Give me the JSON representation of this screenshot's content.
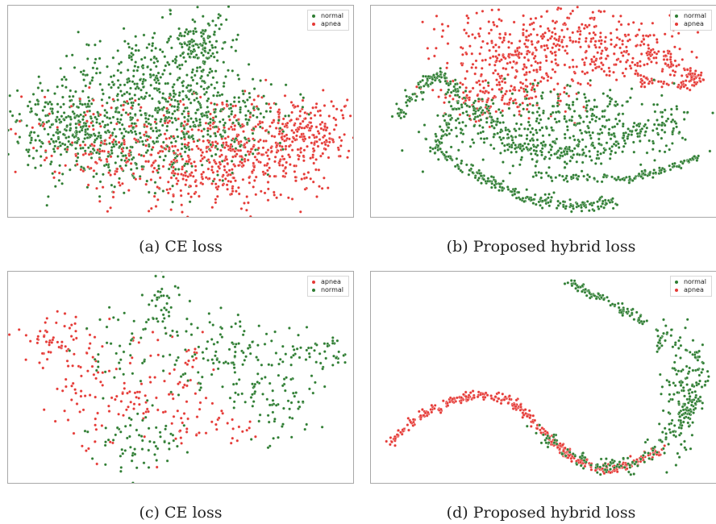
{
  "colors": {
    "normal": "#2e7d32",
    "apnea": "#e53935"
  },
  "chart_data": [
    {
      "type": "scatter",
      "caption": "(a) CE loss",
      "legend": [
        "normal",
        "apnea"
      ],
      "legend_placement": "top-right",
      "series": [
        {
          "name": "normal",
          "color": "#2e7d32"
        },
        {
          "name": "apnea",
          "color": "#e53935"
        }
      ],
      "grid": false
    },
    {
      "type": "scatter",
      "caption": "(b) Proposed hybrid loss",
      "legend": [
        "normal",
        "apnea"
      ],
      "legend_placement": "top-right",
      "series": [
        {
          "name": "normal",
          "color": "#2e7d32"
        },
        {
          "name": "apnea",
          "color": "#e53935"
        }
      ],
      "grid": false
    },
    {
      "type": "scatter",
      "caption": "(c) CE loss",
      "legend": [
        "apnea",
        "normal"
      ],
      "legend_placement": "top-right",
      "series": [
        {
          "name": "apnea",
          "color": "#e53935"
        },
        {
          "name": "normal",
          "color": "#2e7d32"
        }
      ],
      "grid": false
    },
    {
      "type": "scatter",
      "caption": "(d) Proposed hybrid loss",
      "legend": [
        "normal",
        "apnea"
      ],
      "legend_placement": "top-right",
      "series": [
        {
          "name": "normal",
          "color": "#2e7d32"
        },
        {
          "name": "apnea",
          "color": "#e53935"
        }
      ],
      "grid": false
    }
  ]
}
